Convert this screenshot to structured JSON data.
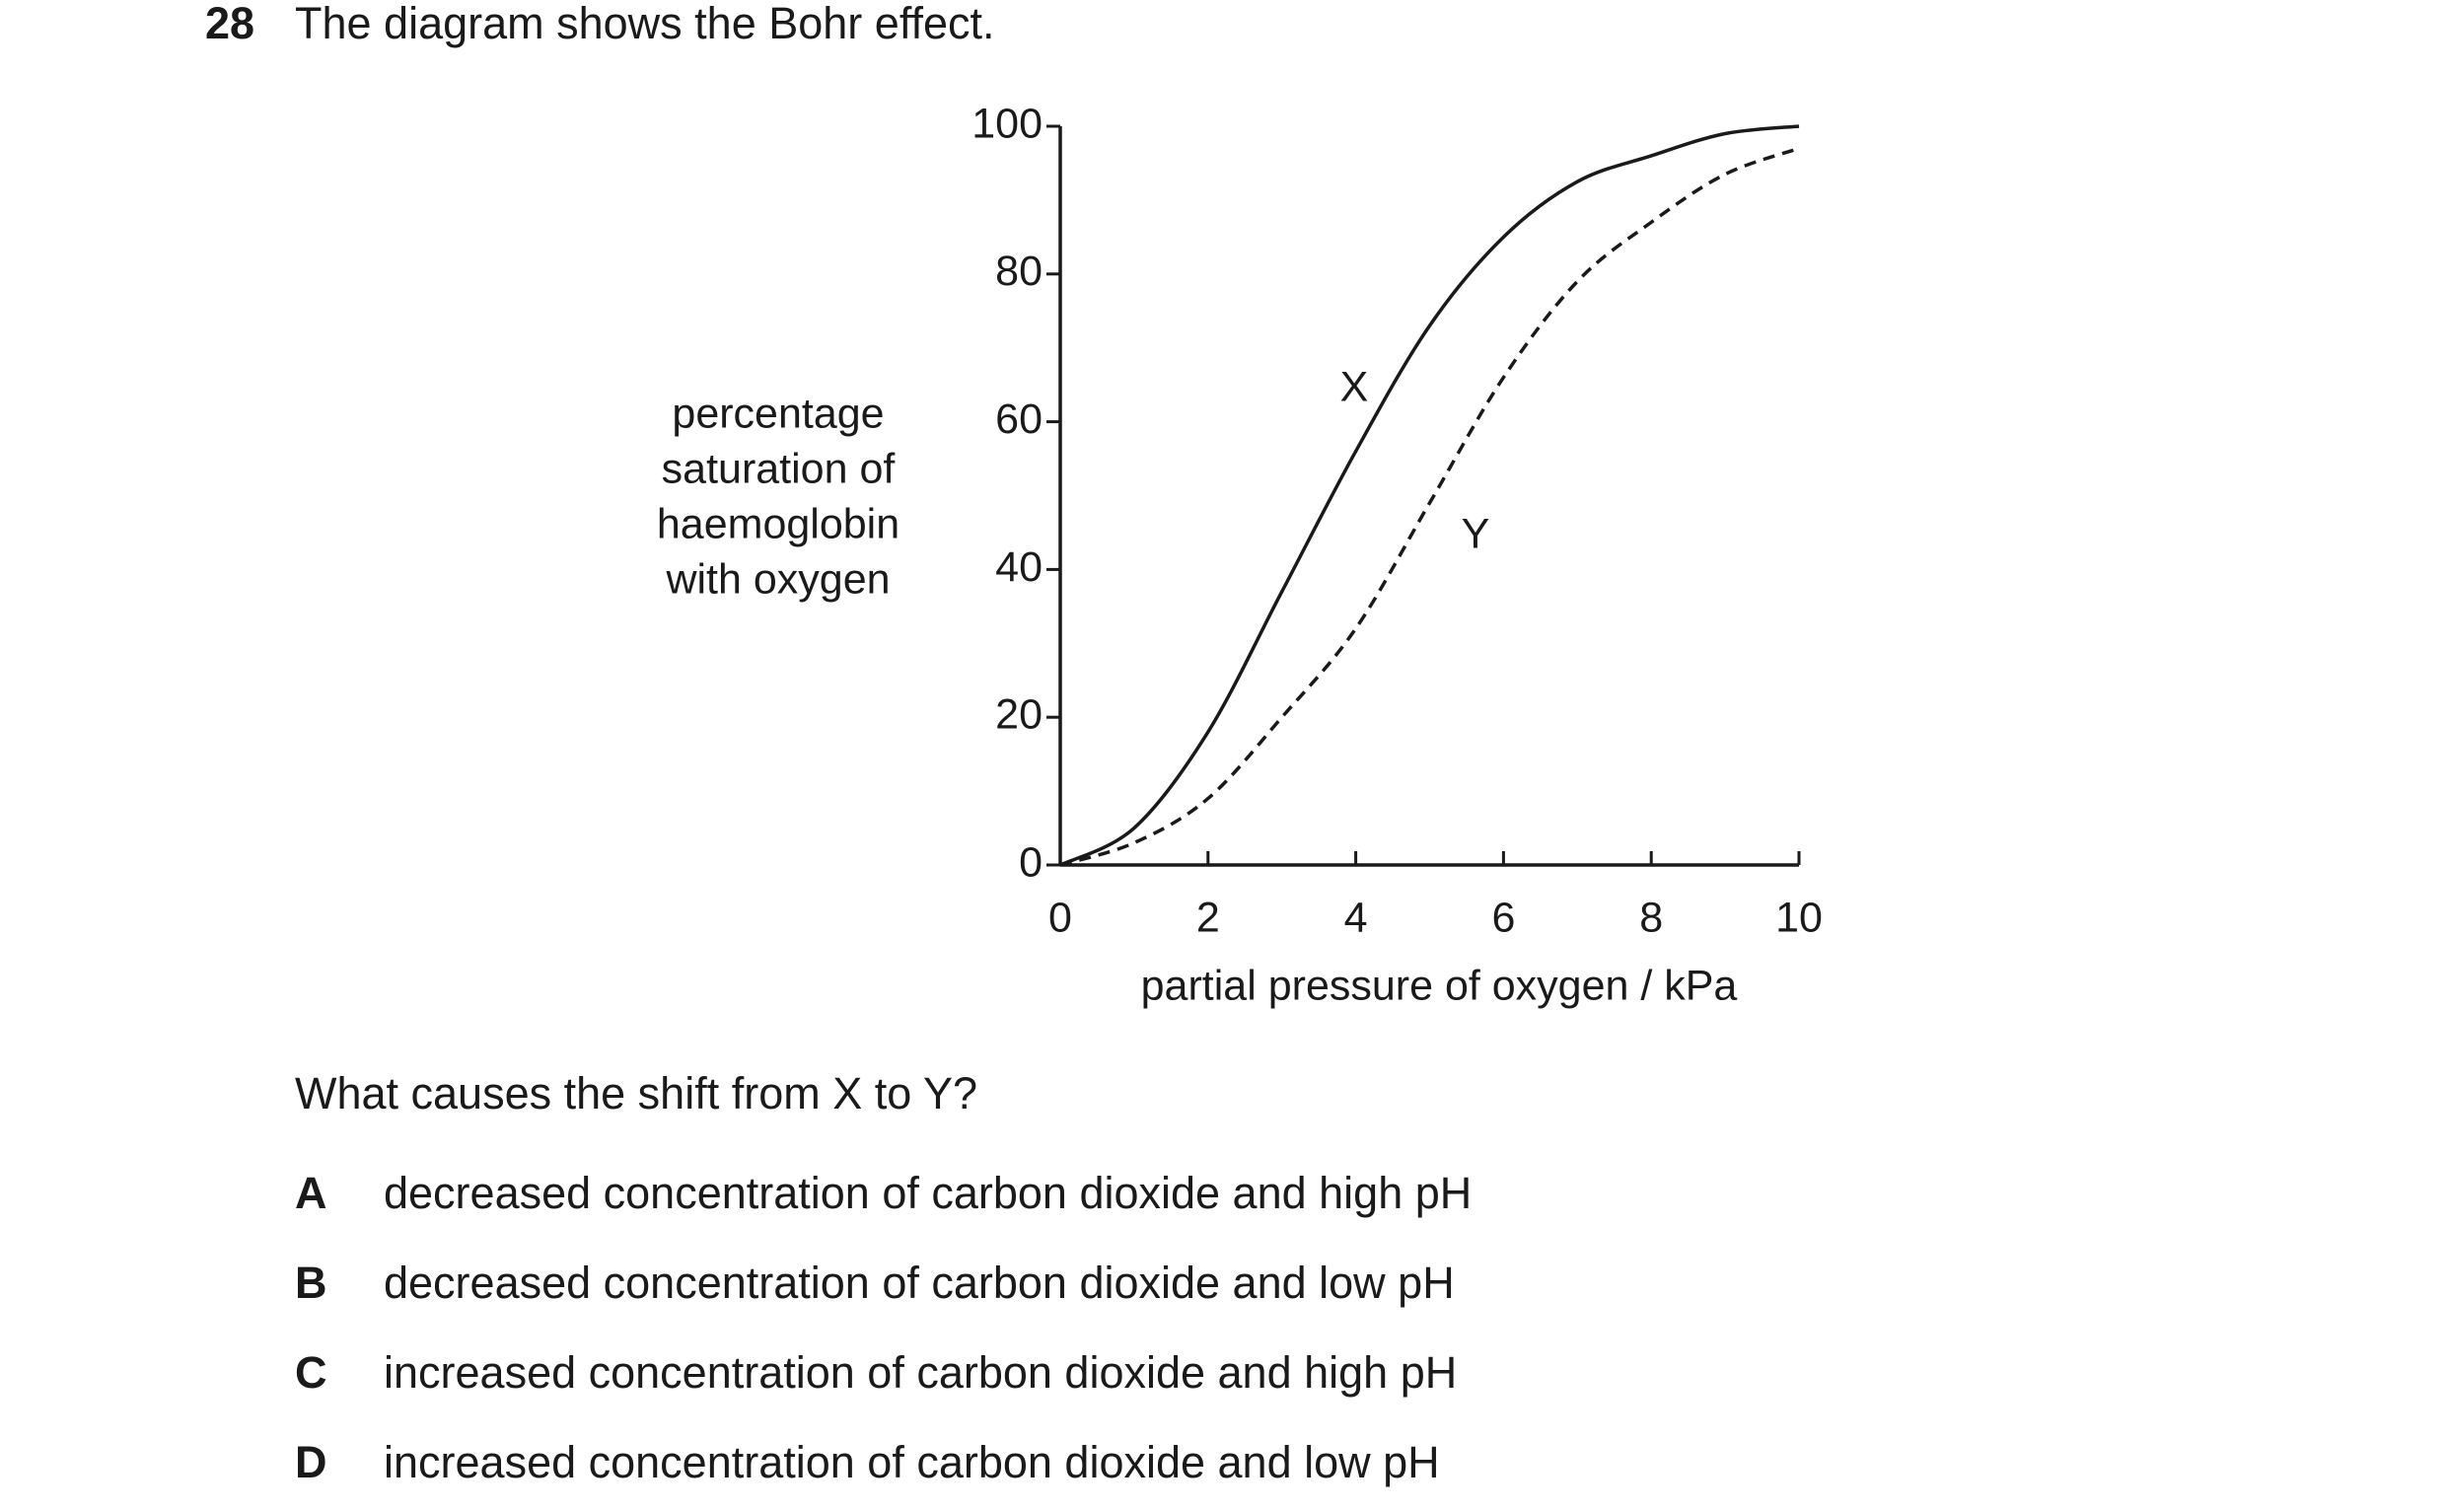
{
  "question": {
    "number": "28",
    "text": "The diagram shows the Bohr effect.",
    "prompt": "What causes the shift from X to Y?",
    "options": [
      {
        "letter": "A",
        "text": "decreased concentration of carbon dioxide and high pH"
      },
      {
        "letter": "B",
        "text": "decreased concentration of carbon dioxide and low pH"
      },
      {
        "letter": "C",
        "text": "increased concentration of carbon dioxide and high pH"
      },
      {
        "letter": "D",
        "text": "increased concentration of carbon dioxide and low pH"
      }
    ]
  },
  "chart_data": {
    "type": "line",
    "xlabel": "partial pressure of oxygen / kPa",
    "ylabel": [
      "percentage",
      "saturation of",
      "haemoglobin",
      "with oxygen"
    ],
    "x": [
      0,
      1,
      2,
      3,
      4,
      5,
      6,
      7,
      8,
      9,
      10
    ],
    "series": [
      {
        "name": "X",
        "color": "#1a1a1a",
        "dashed": false,
        "values": [
          0,
          5,
          18,
          37,
          56,
          73,
          85,
          92.5,
          96,
          99,
          100
        ]
      },
      {
        "name": "Y",
        "color": "#1a1a1a",
        "dashed": true,
        "values": [
          0,
          3,
          9,
          20,
          32,
          49,
          66,
          79,
          87,
          93.5,
          97
        ]
      }
    ],
    "xlim": [
      0,
      10
    ],
    "ylim": [
      0,
      100
    ],
    "xticks": [
      0,
      2,
      4,
      6,
      8,
      10
    ],
    "yticks": [
      0,
      20,
      40,
      60,
      80,
      100
    ],
    "grid": false
  }
}
